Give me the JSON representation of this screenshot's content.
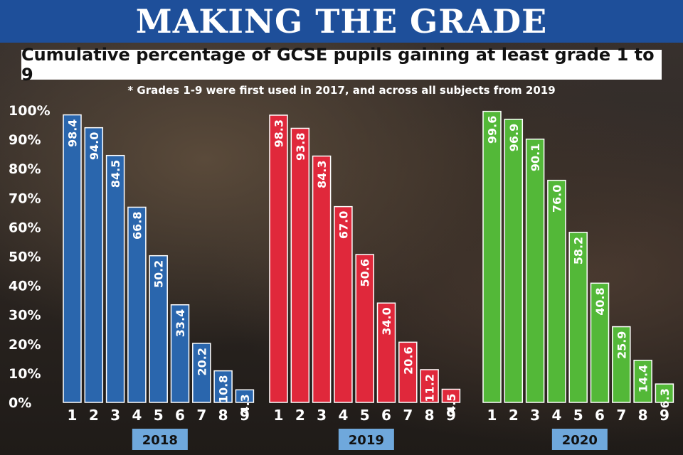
{
  "header": {
    "title": "MAKING THE GRADE",
    "subtitle": "Cumulative percentage of GCSE pupils gaining at least grade 1 to 9",
    "note": "* Grades 1-9 were first used in 2017, and across all subjects from 2019"
  },
  "colors": {
    "banner": "#1e4f9a",
    "2018": "#2a66ad",
    "2019": "#e0283b",
    "2020": "#53b838",
    "year_label_bg": "#6fa8dc"
  },
  "chart_data": {
    "type": "bar",
    "categories": [
      "1",
      "2",
      "3",
      "4",
      "5",
      "6",
      "7",
      "8",
      "9"
    ],
    "ylim": [
      0,
      100
    ],
    "yticks": [
      "0%",
      "10%",
      "20%",
      "30%",
      "40%",
      "50%",
      "60%",
      "70%",
      "80%",
      "90%",
      "100%"
    ],
    "series": [
      {
        "name": "2018",
        "values": [
          98.4,
          94.0,
          84.5,
          66.8,
          50.2,
          33.4,
          20.2,
          10.8,
          4.3
        ]
      },
      {
        "name": "2019",
        "values": [
          98.3,
          93.8,
          84.3,
          67.0,
          50.6,
          34.0,
          20.6,
          11.2,
          4.5
        ]
      },
      {
        "name": "2020",
        "values": [
          99.6,
          96.9,
          90.1,
          76.0,
          58.2,
          40.8,
          25.9,
          14.4,
          6.3
        ]
      }
    ]
  }
}
